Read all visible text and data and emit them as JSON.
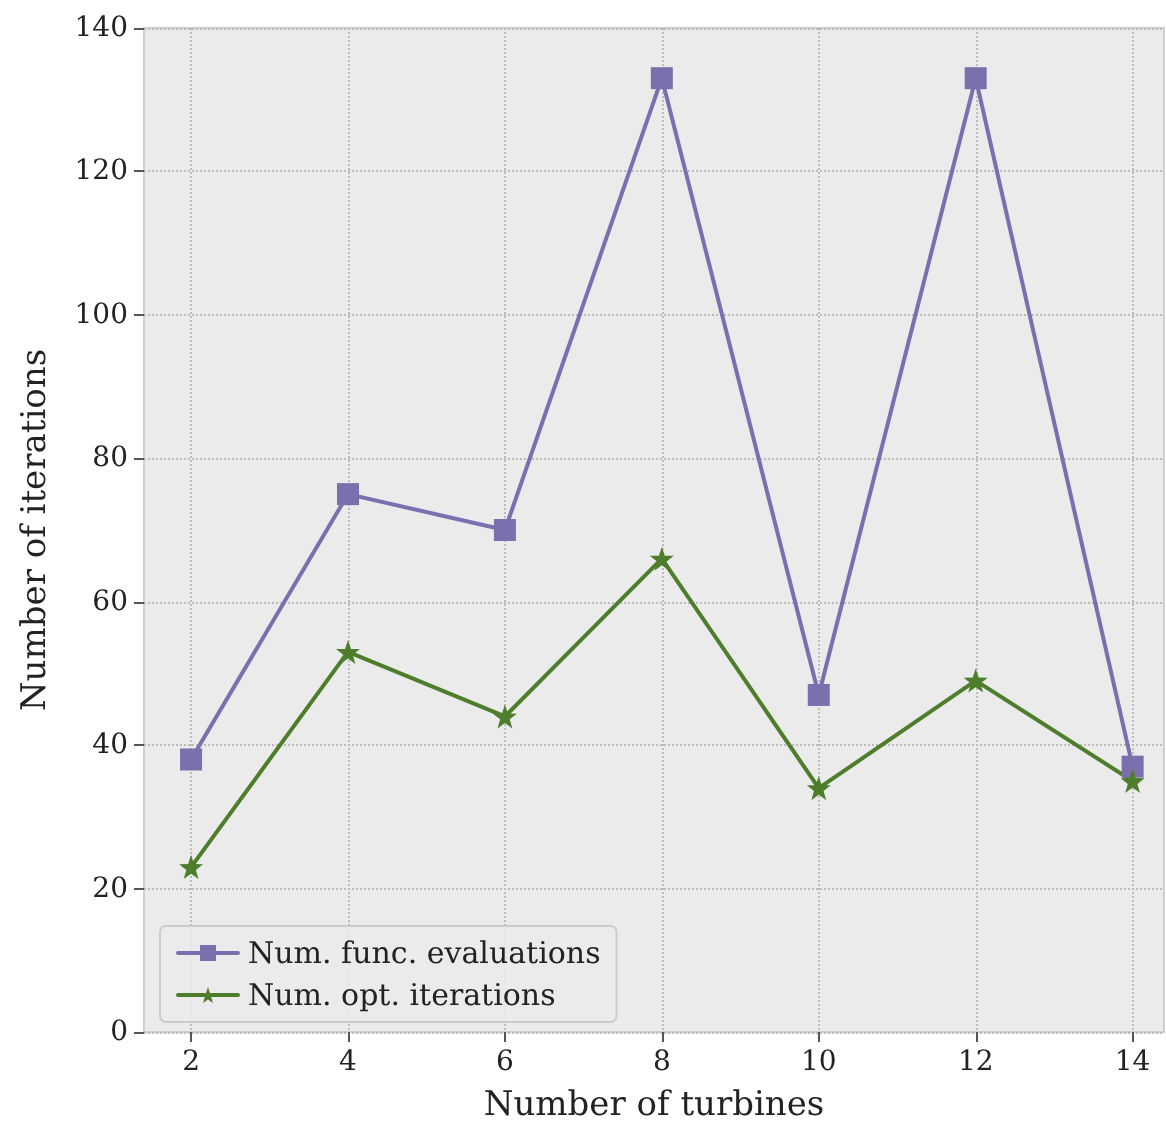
{
  "chart_data": {
    "type": "line",
    "xlabel": "Number of turbines",
    "ylabel": "Number of iterations",
    "x": [
      2,
      4,
      6,
      8,
      10,
      12,
      14
    ],
    "series": [
      {
        "name": "Num. func. evaluations",
        "color": "#7b6fad",
        "marker": "square",
        "values": [
          38,
          75,
          70,
          133,
          47,
          133,
          37
        ]
      },
      {
        "name": "Num. opt. iterations",
        "color": "#4e7d2b",
        "marker": "star",
        "values": [
          23,
          53,
          44,
          66,
          34,
          49,
          35
        ]
      }
    ],
    "xlim": [
      1.4,
      14.4
    ],
    "xticks": [
      2,
      4,
      6,
      8,
      10,
      12,
      14
    ],
    "ylim": [
      0,
      140
    ],
    "yticks": [
      0,
      20,
      40,
      60,
      80,
      100,
      120,
      140
    ],
    "grid": true,
    "legend": "bottom left",
    "line_style": "solid"
  }
}
